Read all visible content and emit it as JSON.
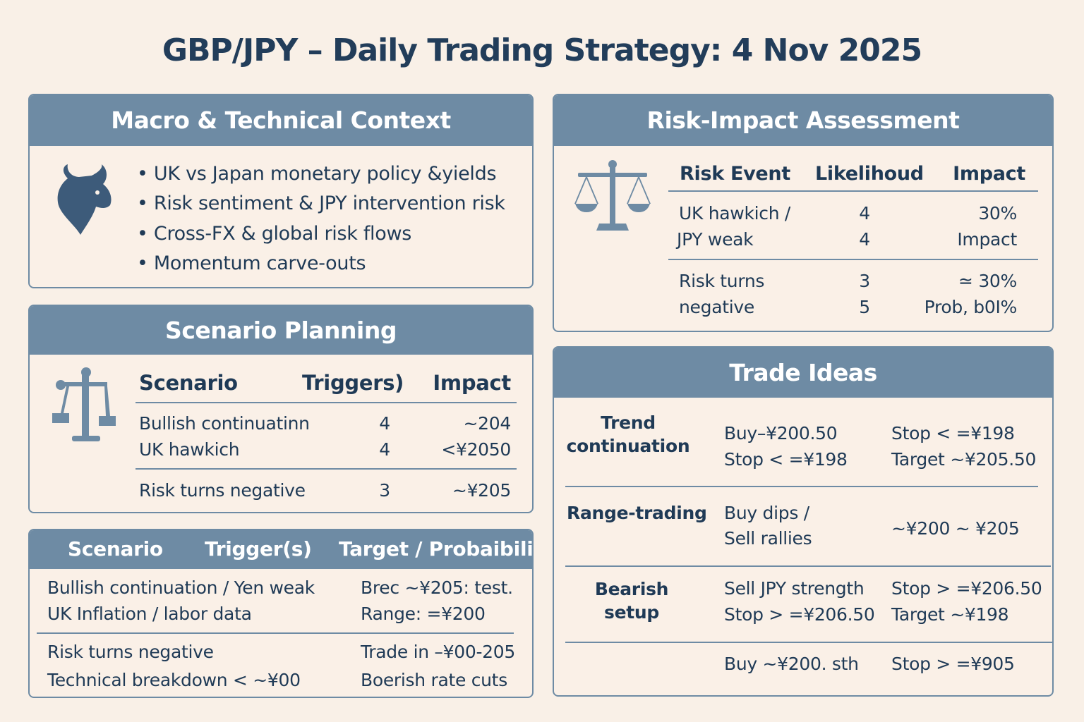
{
  "title": "GBP/JPY – Daily Trading Strategy: 4 Nov 2025",
  "colors": {
    "background": "#f9f0e7",
    "header": "#6e8ba4",
    "text": "#1f3a56"
  },
  "macro": {
    "heading": "Macro & Technical Context",
    "icon": "bull-icon",
    "bullets": [
      "UK vs Japan monetary policy &yields",
      "Risk sentiment & JPY intervention risk",
      "Cross-FX & global risk flows",
      "Momentum carve-outs"
    ]
  },
  "scenario": {
    "heading": "Scenario Planning",
    "icon": "scales-icon",
    "headers": [
      "Scenario",
      "Triggers)",
      "Impact"
    ],
    "rows": [
      [
        "Bullish continuatinn",
        "4",
        "~204"
      ],
      [
        "UK hawkich",
        "4",
        "<¥2050"
      ],
      [
        "Risk turns negative",
        "3",
        "~¥205"
      ]
    ]
  },
  "table": {
    "headers": [
      "Scenario",
      "Trigger(s)",
      "Target / Probaibility"
    ],
    "rows": [
      [
        "Bullish continuation  / Yen weak",
        "Brec ~¥205: test."
      ],
      [
        "UK Inflation / labor data",
        "Range: =¥200"
      ],
      [
        "Risk turns negative",
        "Trade in –¥00-205"
      ],
      [
        "Technical breakdown < ~¥00",
        "Boerish rate cuts"
      ]
    ]
  },
  "risk": {
    "heading": "Risk-Impact Assessment",
    "icon": "balance-scale-icon",
    "headers": [
      "Risk Event",
      "Likelihoud",
      "Impact"
    ],
    "rows": [
      [
        "UK hawkich /",
        "4",
        "30%"
      ],
      [
        "JPY weak",
        "4",
        "Impact"
      ],
      [
        "Risk turns",
        "3",
        "≃ 30%"
      ],
      [
        "negative",
        "5",
        "Prob, b0I%"
      ]
    ]
  },
  "trades": {
    "heading": "Trade Ideas",
    "rows": [
      {
        "name": "Trend continuation",
        "entry": [
          "Buy–¥200.50",
          "Stop < =¥198"
        ],
        "exit": [
          "Stop < =¥198",
          "Target ~¥205.50"
        ]
      },
      {
        "name": "Range-trading",
        "entry": [
          "Buy dips /",
          "Sell rallies"
        ],
        "exit": [
          "~¥200 ~ ¥205"
        ]
      },
      {
        "name": "Bearish setup",
        "entry": [
          "Sell JPY strength",
          "Stop > =¥206.50"
        ],
        "exit": [
          "Stop > =¥206.50",
          "Target ~¥198"
        ]
      },
      {
        "name": "",
        "entry": [
          "Buy ~¥200. sth"
        ],
        "exit": [
          "Stop > =¥905"
        ]
      }
    ]
  }
}
